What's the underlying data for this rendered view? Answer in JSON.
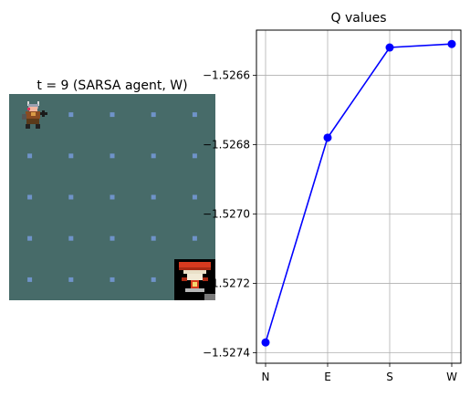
{
  "grid_panel": {
    "title": "t = 9 (SARSA agent, W)",
    "rows": 5,
    "cols": 5,
    "background_color": "#476b69",
    "dot_color": "#6f93c9",
    "agent": {
      "row": 0,
      "col": 0,
      "icon": "viking-warrior-icon"
    },
    "goal": {
      "row": 4,
      "col": 4,
      "icon": "treasure-chest-icon"
    }
  },
  "chart_data": {
    "type": "line",
    "title": "Q values",
    "xlabel": "",
    "ylabel": "",
    "categories": [
      "N",
      "E",
      "S",
      "W"
    ],
    "series": [
      {
        "values": [
          -1.52737,
          -1.52678,
          -1.52652,
          -1.52651
        ],
        "color": "#0000ff",
        "marker": "circle"
      }
    ],
    "ylim": [
      -1.52743,
      -1.52647
    ],
    "yticks": [
      -1.5274,
      -1.5272,
      -1.527,
      -1.5268,
      -1.5266
    ],
    "ytick_labels": [
      "−1.5274",
      "−1.5272",
      "−1.5270",
      "−1.5268",
      "−1.5266"
    ],
    "grid": true,
    "legend": "none"
  }
}
